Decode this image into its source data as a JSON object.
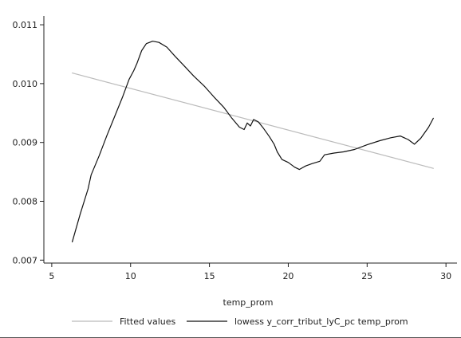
{
  "chart_data": {
    "type": "line",
    "xlabel": "temp_prom",
    "ylabel": "",
    "xlim": [
      4.5,
      30.7
    ],
    "ylim": [
      0.00695,
      0.01115
    ],
    "x_ticks": [
      5,
      10,
      15,
      20,
      25,
      30
    ],
    "y_ticks": [
      0.007,
      0.008,
      0.009,
      0.01,
      0.011
    ],
    "x_tick_labels": [
      "5",
      "10",
      "15",
      "20",
      "25",
      "30"
    ],
    "y_tick_labels": [
      "0.007",
      "0.008",
      "0.009",
      "0.010",
      "0.011"
    ],
    "grid": false,
    "legend_position": "bottom",
    "series": [
      {
        "name": "Fitted values",
        "color": "#bbbbbb",
        "x": [
          6.3,
          29.2
        ],
        "y": [
          0.01018,
          0.00856
        ]
      },
      {
        "name": "lowess y_corr_tribut_lyC_pc temp_prom",
        "color": "#111111",
        "x": [
          6.3,
          6.8,
          7.3,
          7.5,
          8.0,
          8.5,
          9.0,
          9.5,
          9.9,
          10.2,
          10.4,
          10.7,
          11.0,
          11.4,
          11.8,
          12.3,
          12.8,
          13.4,
          14.0,
          14.7,
          15.3,
          15.9,
          16.4,
          16.9,
          17.2,
          17.4,
          17.6,
          17.8,
          18.1,
          18.4,
          18.8,
          19.1,
          19.3,
          19.6,
          20.0,
          20.4,
          20.7,
          21.1,
          21.5,
          22.0,
          22.3,
          22.9,
          23.5,
          24.2,
          25.0,
          25.8,
          26.5,
          27.1,
          27.6,
          28.0,
          28.4,
          28.9,
          29.2
        ],
        "y": [
          0.00731,
          0.00778,
          0.00821,
          0.00845,
          0.00877,
          0.00912,
          0.00945,
          0.00978,
          0.01007,
          0.01022,
          0.01034,
          0.01056,
          0.01068,
          0.01072,
          0.0107,
          0.01062,
          0.01047,
          0.0103,
          0.01013,
          0.00995,
          0.00977,
          0.0096,
          0.00942,
          0.00926,
          0.00922,
          0.00933,
          0.00928,
          0.00939,
          0.00935,
          0.00925,
          0.0091,
          0.00897,
          0.00884,
          0.00871,
          0.00866,
          0.00858,
          0.00854,
          0.0086,
          0.00864,
          0.00868,
          0.00879,
          0.00882,
          0.00884,
          0.00888,
          0.00896,
          0.00903,
          0.00908,
          0.00911,
          0.00905,
          0.00897,
          0.00907,
          0.00926,
          0.00941
        ]
      }
    ]
  }
}
